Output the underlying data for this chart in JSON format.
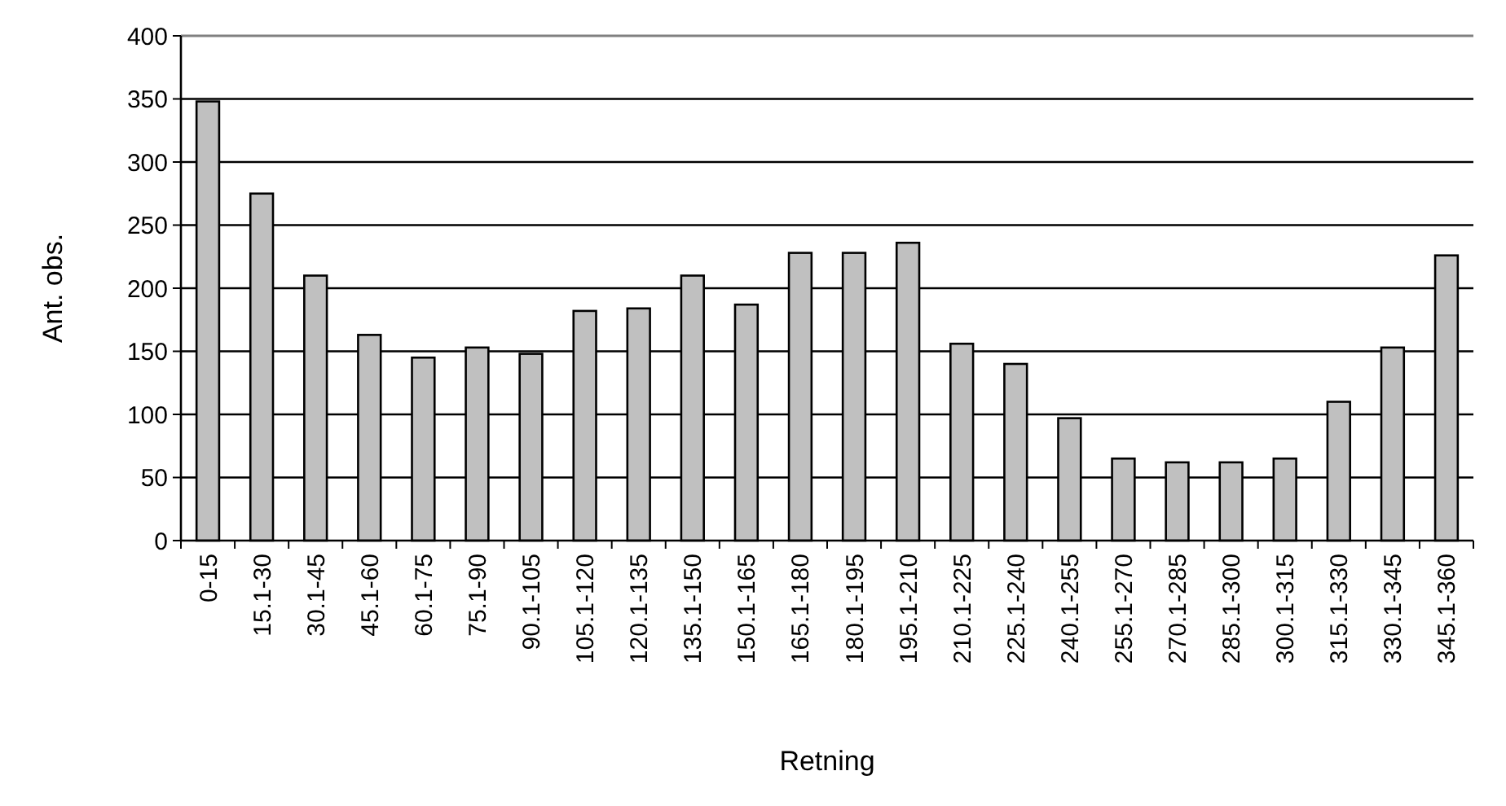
{
  "chart_data": {
    "type": "bar",
    "xlabel": "Retning",
    "ylabel": "Ant. obs.",
    "categories": [
      "0-15",
      "15.1-30",
      "30.1-45",
      "45.1-60",
      "60.1-75",
      "75.1-90",
      "90.1-105",
      "105.1-120",
      "120.1-135",
      "135.1-150",
      "150.1-165",
      "165.1-180",
      "180.1-195",
      "195.1-210",
      "210.1-225",
      "225.1-240",
      "240.1-255",
      "255.1-270",
      "270.1-285",
      "285.1-300",
      "300.1-315",
      "315.1-330",
      "330.1-345",
      "345.1-360"
    ],
    "values": [
      348,
      275,
      210,
      163,
      145,
      153,
      148,
      182,
      184,
      210,
      187,
      228,
      228,
      236,
      156,
      140,
      97,
      65,
      62,
      62,
      65,
      110,
      153,
      226
    ],
    "color": "#c0c0c0",
    "ylim": [
      0,
      400
    ],
    "yticks": [
      0,
      50,
      100,
      150,
      200,
      250,
      300,
      350,
      400
    ],
    "grid": "y"
  }
}
